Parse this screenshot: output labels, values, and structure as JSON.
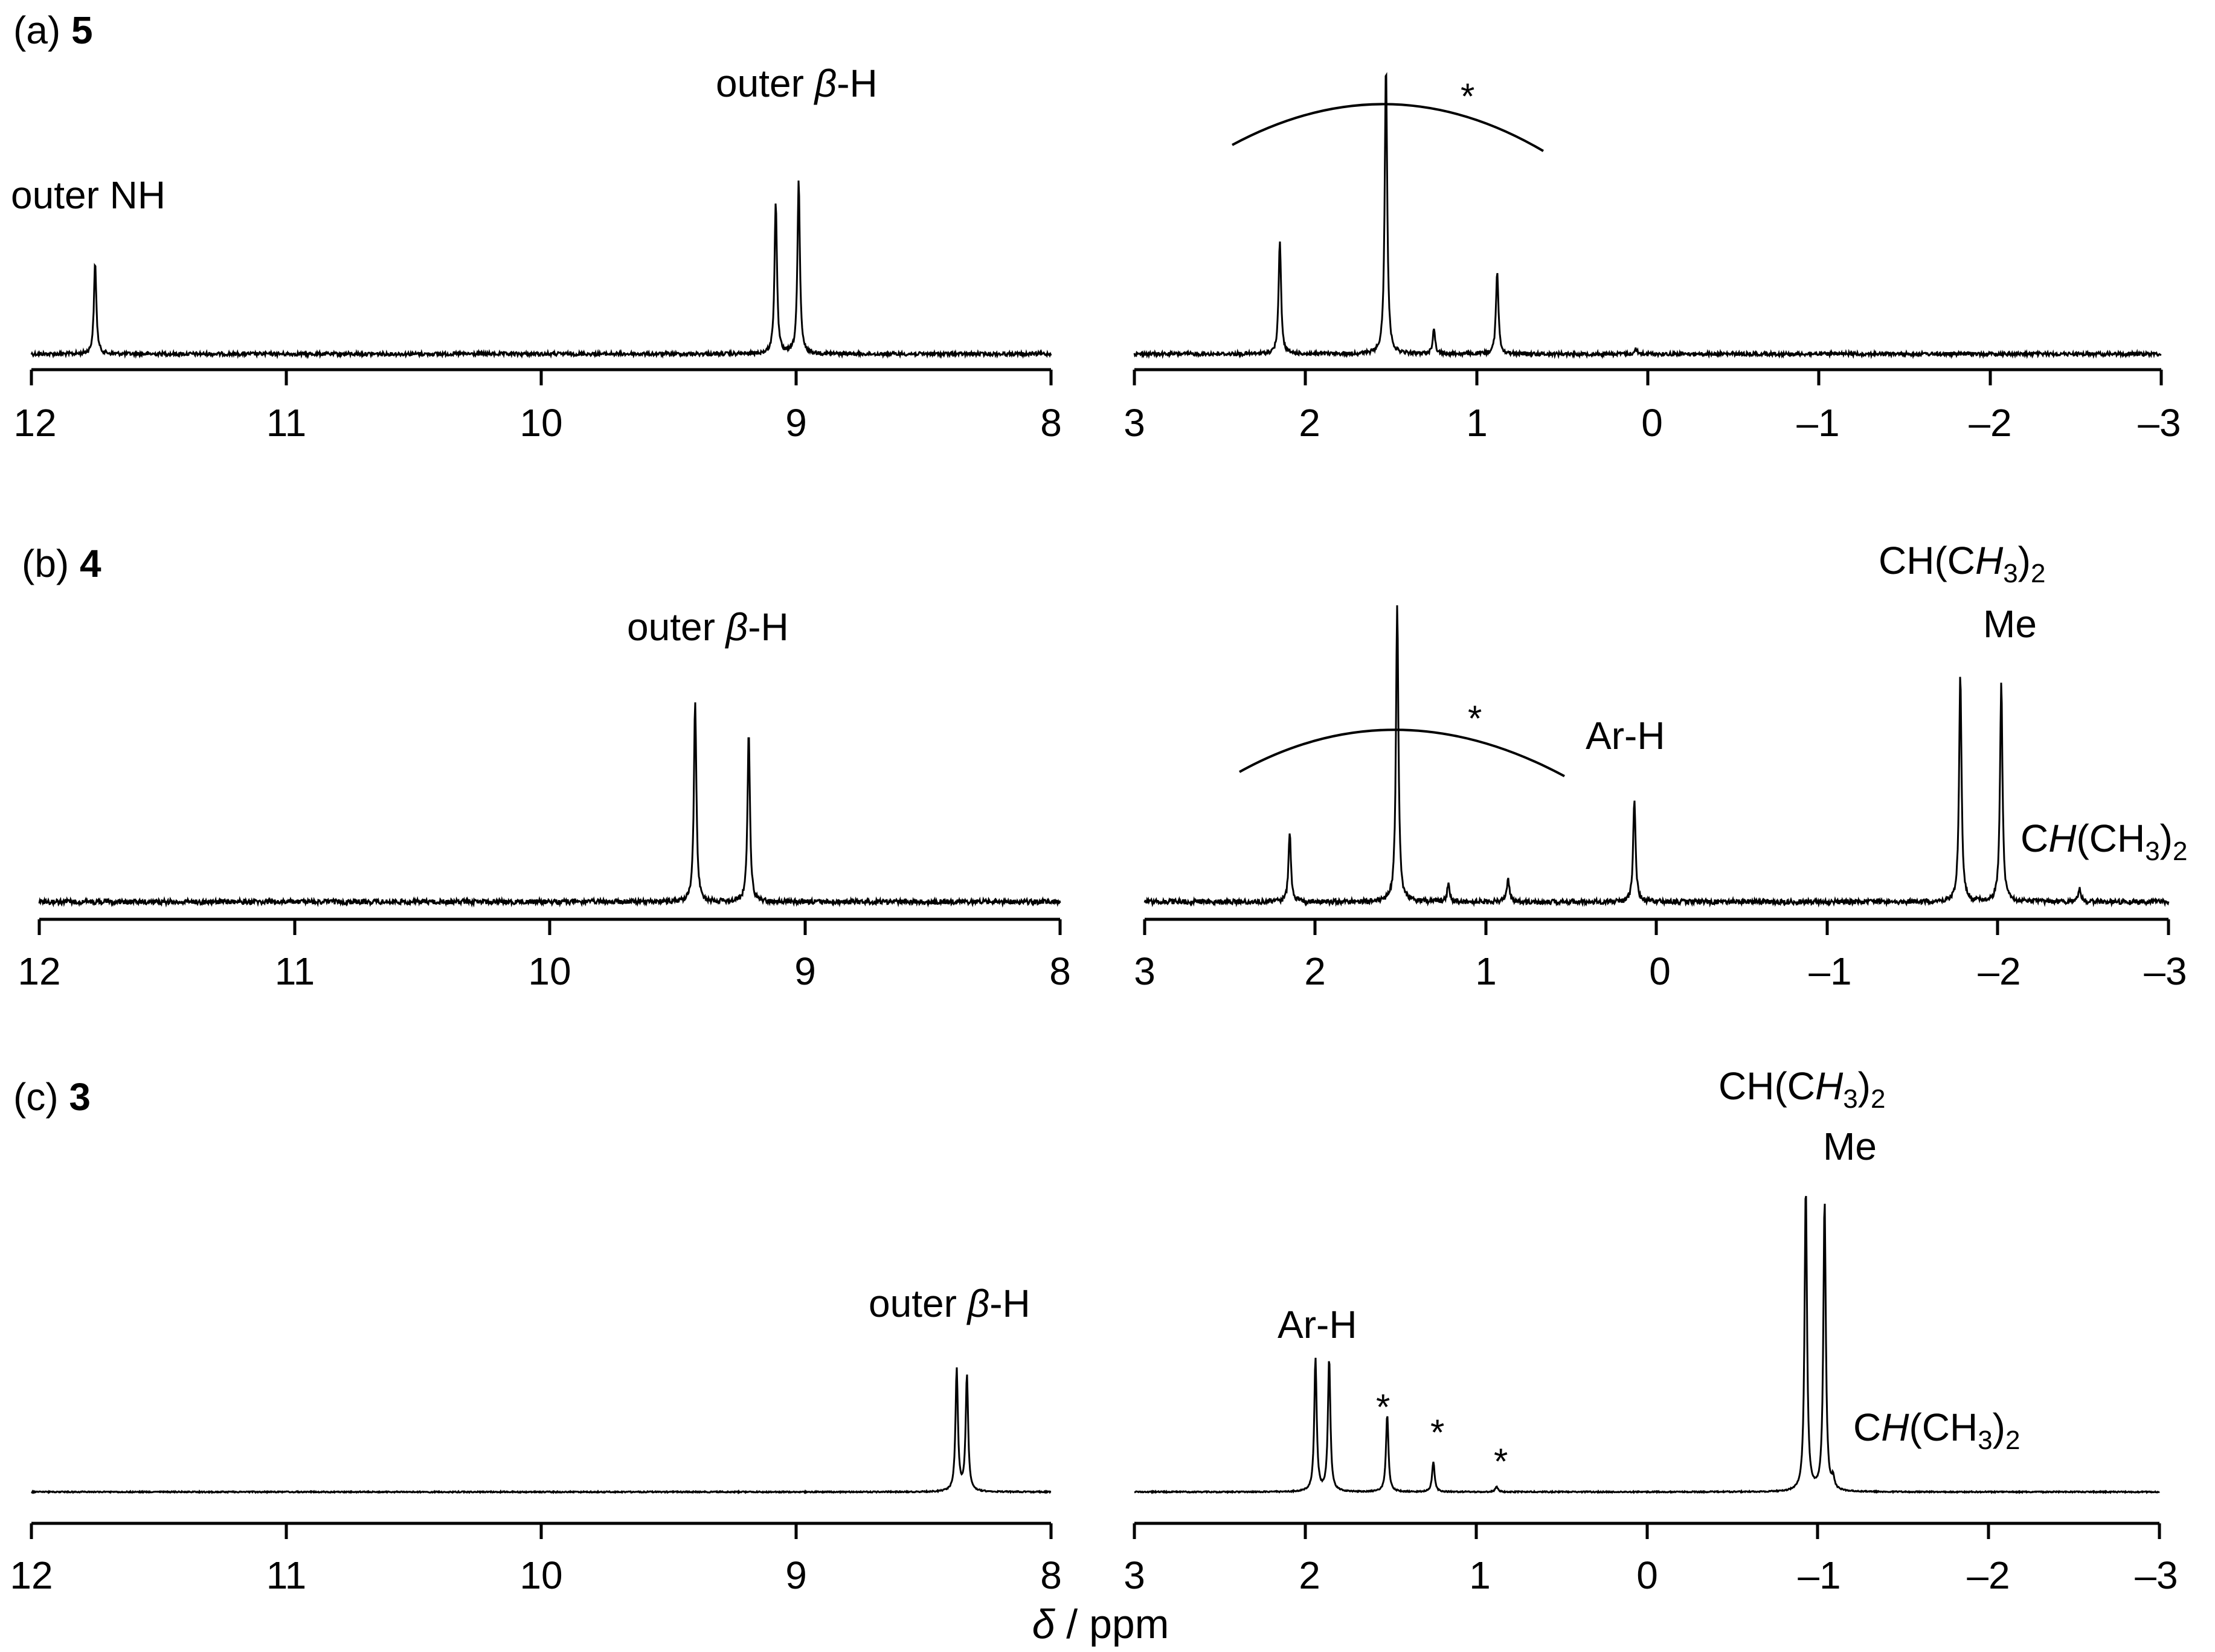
{
  "chart_data": {
    "type": "line",
    "xlabel_delta": "δ",
    "xlabel_units": " / ppm",
    "left_range": [
      12,
      8
    ],
    "right_range": [
      3,
      -3
    ],
    "left_ticks": [
      "12",
      "11",
      "10",
      "9",
      "8"
    ],
    "right_ticks": [
      "3",
      "2",
      "1",
      "0",
      "–1",
      "–2",
      "–3"
    ],
    "panels": [
      {
        "id": "a",
        "prefix": "(a) ",
        "compound": "5",
        "peaks": [
          {
            "ppm": 11.75,
            "intensity": 0.36
          },
          {
            "ppm": 9.08,
            "intensity": 0.6
          },
          {
            "ppm": 8.99,
            "intensity": 0.68
          },
          {
            "ppm": 2.15,
            "intensity": 0.45
          },
          {
            "ppm": 1.53,
            "intensity": 1.15
          },
          {
            "ppm": 1.25,
            "intensity": 0.1
          },
          {
            "ppm": 0.88,
            "intensity": 0.33
          },
          {
            "ppm": 0.07,
            "intensity": 0.02
          }
        ],
        "labels": [
          {
            "text": "outer NH",
            "ppm": 11.75
          },
          {
            "pre": "outer ",
            "greek": "β",
            "post": "-H",
            "ppm": 9.03
          }
        ],
        "hump": {
          "from_ppm": 2.45,
          "to_ppm": 0.65,
          "star": "*"
        }
      },
      {
        "id": "b",
        "prefix": "(b) ",
        "compound": "4",
        "peaks": [
          {
            "ppm": 9.43,
            "intensity": 0.78
          },
          {
            "ppm": 9.22,
            "intensity": 0.66
          },
          {
            "ppm": 2.15,
            "intensity": 0.27
          },
          {
            "ppm": 1.52,
            "intensity": 1.15
          },
          {
            "ppm": 1.22,
            "intensity": 0.07
          },
          {
            "ppm": 0.87,
            "intensity": 0.09
          },
          {
            "ppm": 0.13,
            "intensity": 0.4
          },
          {
            "ppm": -1.78,
            "intensity": 0.88
          },
          {
            "ppm": -2.02,
            "intensity": 0.85
          },
          {
            "ppm": -2.48,
            "intensity": 0.05
          }
        ],
        "labels": [
          {
            "pre": "outer ",
            "greek": "β",
            "post": "-H",
            "ppm": 9.33
          },
          {
            "text": "Ar-H",
            "ppm": 0.13
          },
          {
            "text": "CH(CH3)2",
            "ppm": -1.78
          },
          {
            "text": "Me",
            "ppm": -2.02
          },
          {
            "text": "CH(CH3)2",
            "ppm": -2.48
          }
        ],
        "hump": {
          "from_ppm": 2.45,
          "to_ppm": 0.55,
          "star": "*"
        }
      },
      {
        "id": "c",
        "prefix": "(c) ",
        "compound": "3",
        "peaks": [
          {
            "ppm": 8.37,
            "intensity": 0.44
          },
          {
            "ppm": 8.33,
            "intensity": 0.42
          },
          {
            "ppm": 1.94,
            "intensity": 0.48
          },
          {
            "ppm": 1.86,
            "intensity": 0.48
          },
          {
            "ppm": 1.52,
            "intensity": 0.28
          },
          {
            "ppm": 1.25,
            "intensity": 0.11
          },
          {
            "ppm": 0.88,
            "intensity": 0.02
          },
          {
            "ppm": -0.93,
            "intensity": 1.1
          },
          {
            "ppm": -1.04,
            "intensity": 1.05
          },
          {
            "ppm": -1.09,
            "intensity": 0.04
          }
        ],
        "labels": [
          {
            "pre": "outer ",
            "greek": "β",
            "post": "-H",
            "ppm": 8.35
          },
          {
            "text": "Ar-H",
            "ppm": 1.9
          },
          {
            "text": "CH(CH3)2",
            "ppm": -0.93
          },
          {
            "text": "Me",
            "ppm": -1.04
          },
          {
            "text": "CH(CH3)2",
            "ppm": -1.09
          }
        ],
        "stars": [
          {
            "ppm": 1.52,
            "text": "*"
          },
          {
            "ppm": 1.25,
            "text": "*"
          },
          {
            "ppm": 0.88,
            "text": "*"
          }
        ]
      }
    ]
  }
}
